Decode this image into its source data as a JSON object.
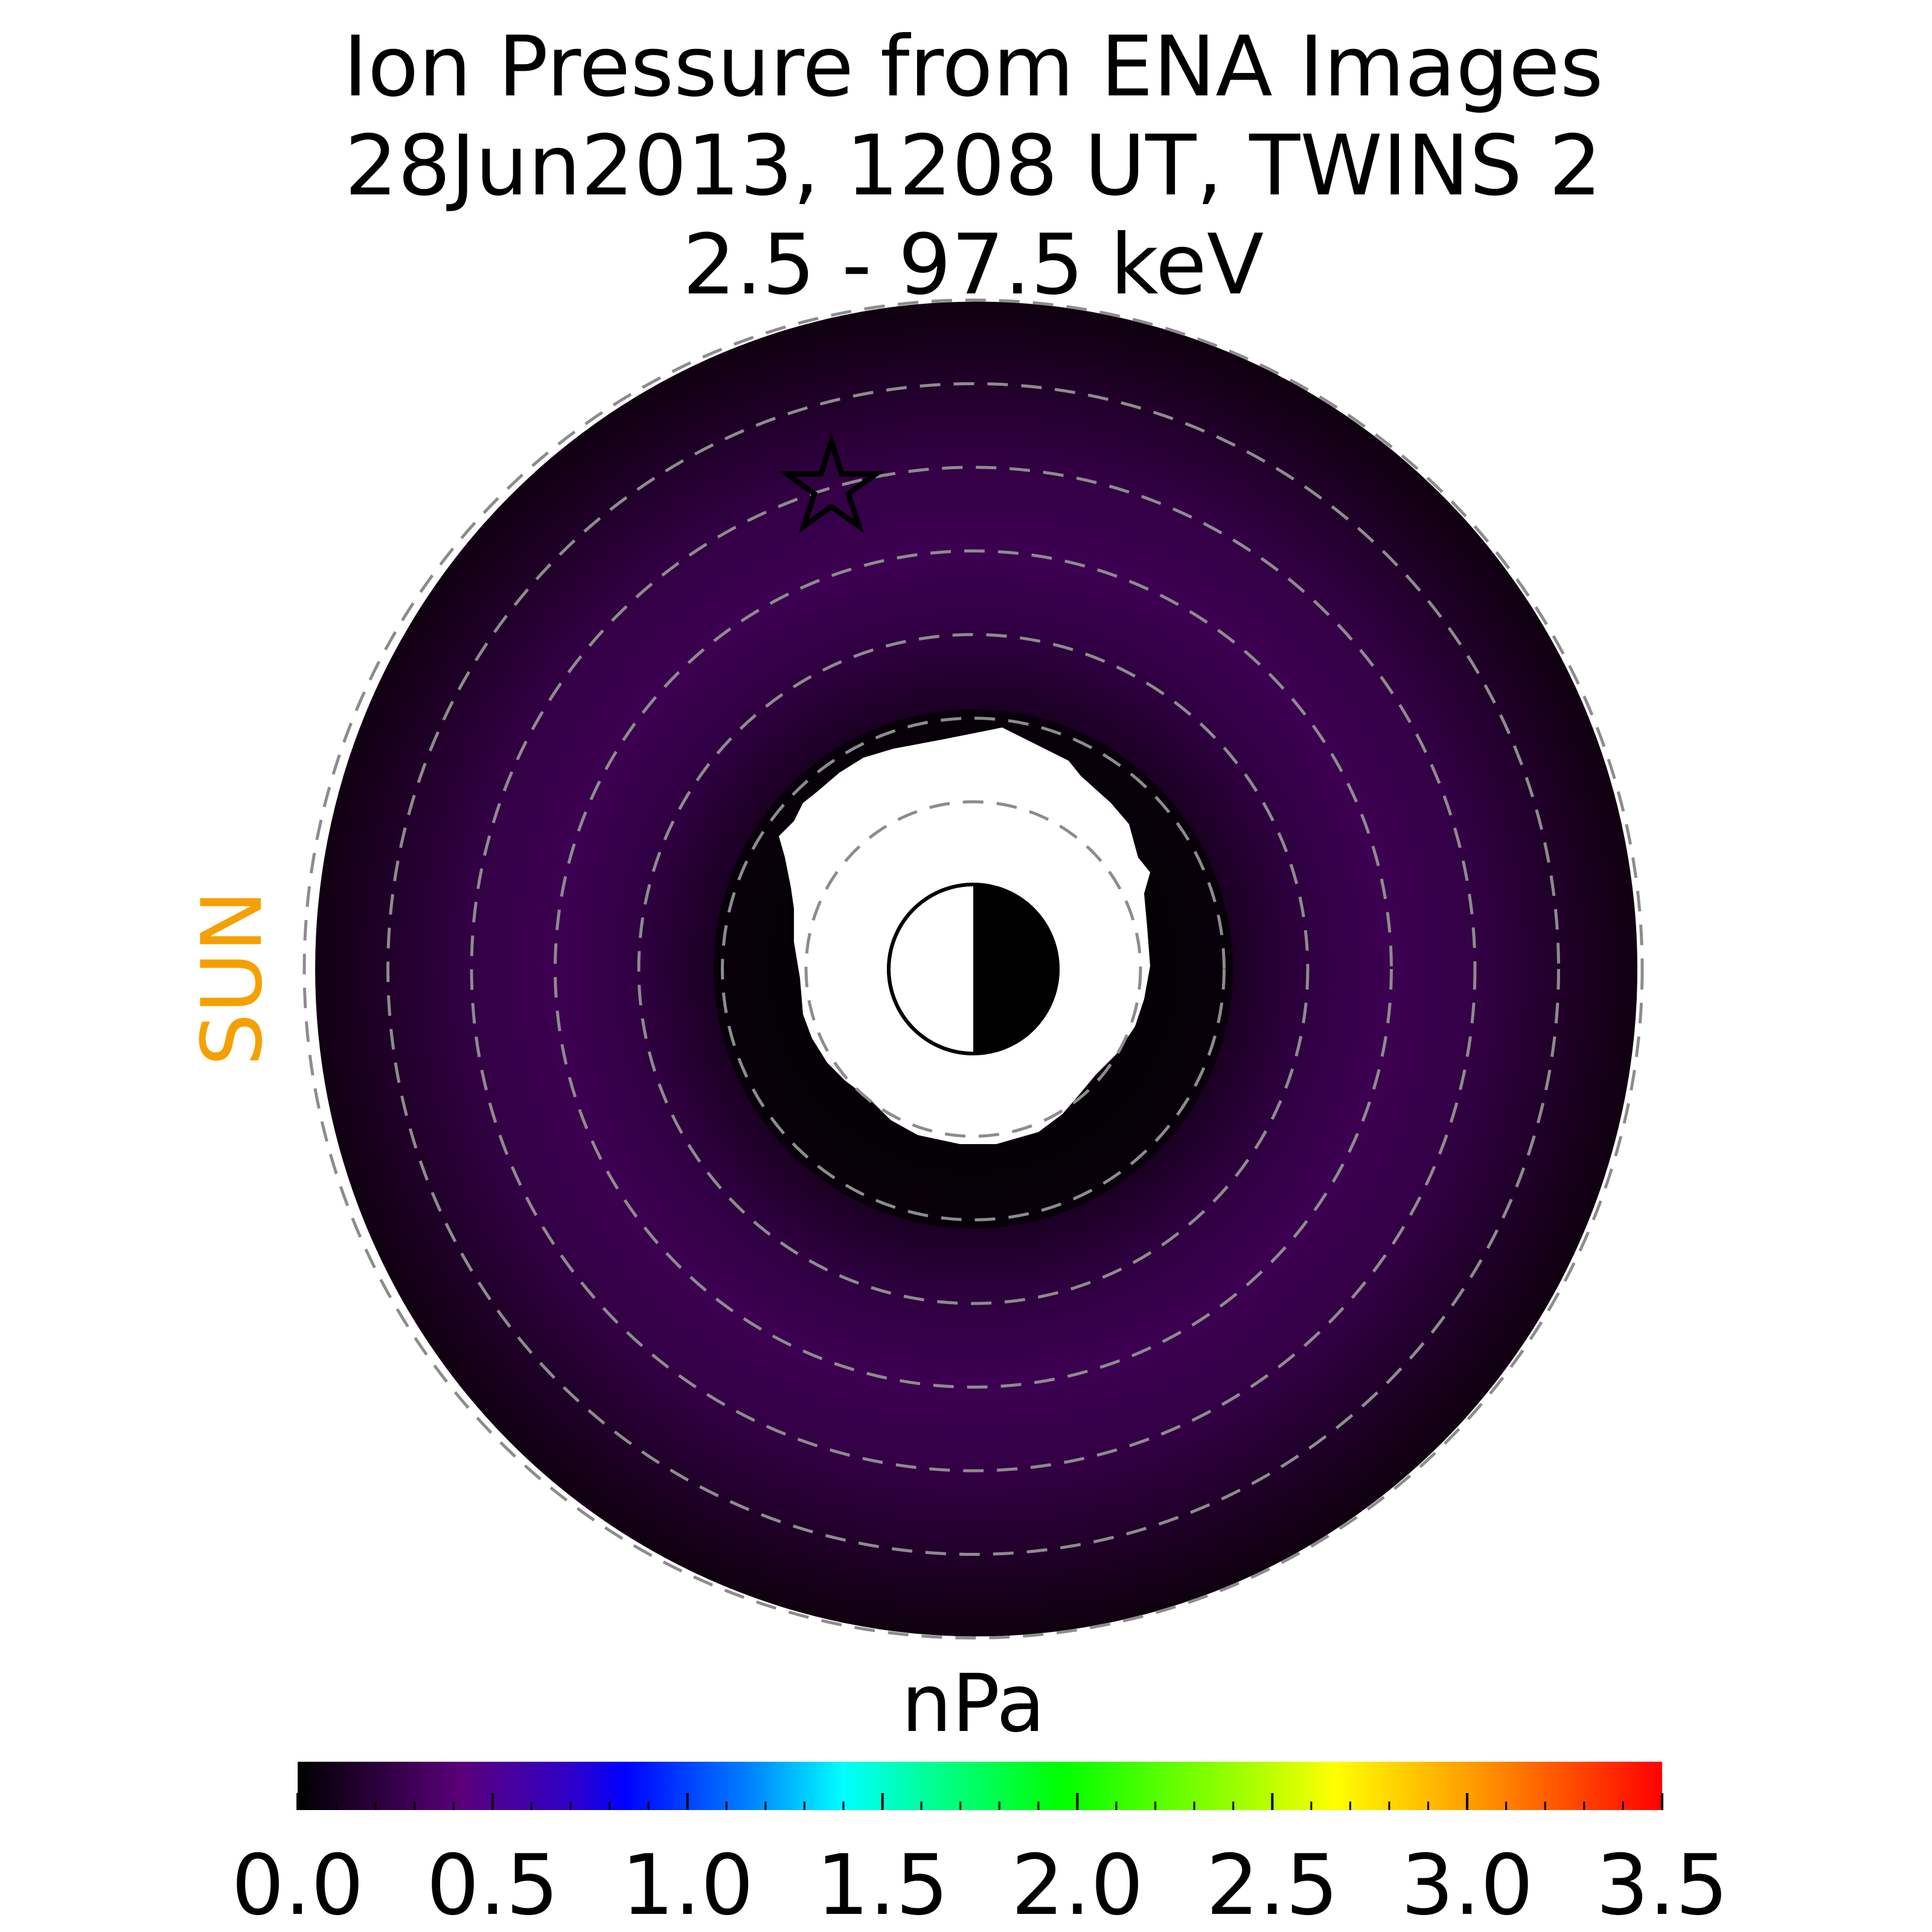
{
  "chart_data": {
    "type": "heatmap",
    "title_lines": [
      "Ion Pressure from  ENA Images",
      "28Jun2013, 1208 UT,  TWINS 2",
      "2.5 - 97.5 keV"
    ],
    "direction_label": "SUN",
    "colorbar": {
      "label": "nPa",
      "range": [
        0.0,
        3.5
      ],
      "tick_labels": [
        "0.0",
        "0.5",
        "1.0",
        "1.5",
        "2.0",
        "2.5",
        "3.0",
        "3.5"
      ],
      "tick_values": [
        0.0,
        0.5,
        1.0,
        1.5,
        2.0,
        2.5,
        3.0,
        3.5
      ],
      "colors": [
        "#000000",
        "#5a007a",
        "#0000ff",
        "#00ffff",
        "#00ff00",
        "#ffff00",
        "#ff7f00",
        "#ff0000"
      ]
    },
    "rings": [
      2,
      3,
      4,
      5,
      6,
      7,
      8
    ],
    "pressure_max_estimate": 0.3,
    "colors": {
      "sun_label": "#f5a000",
      "ring_dash": "#8c8c8c",
      "dark": "#110011",
      "peak": "#3c0050"
    }
  }
}
